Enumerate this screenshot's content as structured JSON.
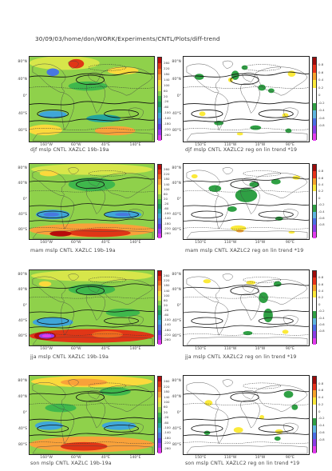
{
  "header": {
    "path": "30/09/03/home/don/WORK/Experiments/CNTL/Plots/diff-trend"
  },
  "lat_labels": [
    "80°N",
    "40°N",
    "0°",
    "40°S",
    "80°S"
  ],
  "lon_labels_left": [
    "160°W",
    "60°W",
    "40°E",
    "140°E"
  ],
  "lon_labels_right": [
    "150°E",
    "110°W",
    "10°W",
    "90°E"
  ],
  "left_colorbar": {
    "labels": [
      "260",
      "220",
      "180",
      "140",
      "100",
      "60",
      "20",
      "-20",
      "-60",
      "-100",
      "-140",
      "-180",
      "-220",
      "-260"
    ],
    "colors": [
      "#b80b0b",
      "#e03616",
      "#f06a1e",
      "#f9a23a",
      "#fbd93c",
      "#d7e64a",
      "#8fd14b",
      "#3fb84c",
      "#1f9c5a",
      "#25a59d",
      "#3fa6d8",
      "#4878e0",
      "#5a3fe3",
      "#9b3cf0",
      "#e23cef"
    ]
  },
  "right_colorbar": {
    "labels": [
      "0.8",
      "0.6",
      "0.4",
      "0.2",
      "0",
      "-0.2",
      "-0.4",
      "-0.6",
      "-0.8"
    ],
    "colors": [
      "#9e0b0b",
      "#e9321a",
      "#f6a32b",
      "#fbea3a",
      "#ffffff",
      "#ffffff",
      "#2fa044",
      "#5fb6e0",
      "#4a6de6",
      "#8a3de6",
      "#e33cef"
    ]
  },
  "panels_left": [
    {
      "caption": "djf mslp CNTL XAZLC 19b-19a"
    },
    {
      "caption": "mam mslp CNTL XAZLC 19b-19a"
    },
    {
      "caption": "jja mslp CNTL XAZLC 19b-19a"
    },
    {
      "caption": "son mslp CNTL XAZLC 19b-19a"
    }
  ],
  "panels_right": [
    {
      "caption": "djf mslp CNTL XAZLC2 reg on lin trend *19"
    },
    {
      "caption": "mam mslp CNTL XAZLC2 reg on lin trend *19"
    },
    {
      "caption": "jja mslp CNTL XAZLC2 reg on lin trend *19"
    },
    {
      "caption": "son mslp CNTL XAZLC2 reg on lin trend *19"
    }
  ]
}
